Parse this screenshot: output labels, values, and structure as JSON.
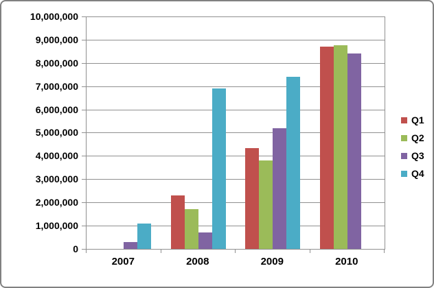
{
  "chart_data": {
    "type": "bar",
    "title": "",
    "xlabel": "",
    "ylabel": "",
    "categories": [
      "2007",
      "2008",
      "2009",
      "2010"
    ],
    "series": [
      {
        "name": "Q1",
        "color": "#C0504D",
        "values": [
          0,
          2300000,
          4350000,
          8700000
        ]
      },
      {
        "name": "Q2",
        "color": "#9BBB59",
        "values": [
          0,
          1700000,
          3800000,
          8750000
        ]
      },
      {
        "name": "Q3",
        "color": "#8064A2",
        "values": [
          300000,
          700000,
          5200000,
          8400000
        ]
      },
      {
        "name": "Q4",
        "color": "#4BACC6",
        "values": [
          1100000,
          6900000,
          7400000,
          0
        ]
      }
    ],
    "ylim": [
      0,
      10000000
    ],
    "ytick_interval": 1000000,
    "ytick_labels": [
      "0",
      "1,000,000",
      "2,000,000",
      "3,000,000",
      "4,000,000",
      "5,000,000",
      "6,000,000",
      "7,000,000",
      "8,000,000",
      "9,000,000",
      "10,000,000"
    ],
    "grid": true,
    "legend_position": "right",
    "legend": [
      "Q1",
      "Q2",
      "Q3",
      "Q4"
    ]
  },
  "colors": {
    "background": "#FFFFFF",
    "chart_border": "#808080",
    "gridline": "#8F8F8F",
    "axis_line": "#8F8F8F",
    "label_text": "#000000"
  }
}
